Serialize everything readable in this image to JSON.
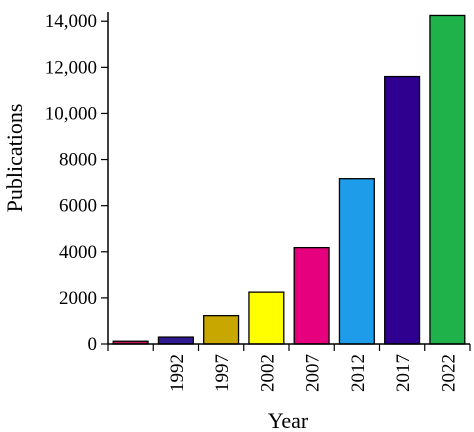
{
  "chart_data": {
    "type": "bar",
    "categories": [
      "",
      "1992",
      "1997",
      "2002",
      "2007",
      "2012",
      "2017",
      "2022"
    ],
    "values": [
      120,
      300,
      1230,
      2250,
      4180,
      7170,
      11600,
      14250
    ],
    "colors": [
      "#c2185b",
      "#311b92",
      "#c8a800",
      "#ffff00",
      "#e6007e",
      "#1e9be9",
      "#2f0090",
      "#1fb24a"
    ],
    "xlabel": "Year",
    "ylabel": "Publications",
    "ylim": [
      0,
      14400
    ],
    "yticks": [
      0,
      2000,
      4000,
      6000,
      8000,
      10000,
      12000,
      14000
    ],
    "ytick_labels": [
      "0",
      "2000",
      "4000",
      "6000",
      "8000",
      "10,000",
      "12,000",
      "14,000"
    ],
    "grid": false,
    "legend": "none"
  }
}
